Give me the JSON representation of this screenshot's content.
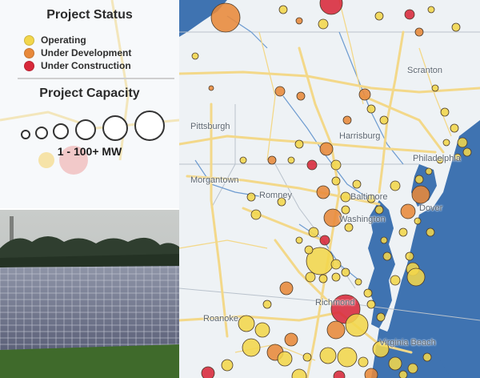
{
  "legend": {
    "status_title": "Project Status",
    "statuses": [
      {
        "label": "Operating",
        "color": "#f2d64b"
      },
      {
        "label": "Under Development",
        "color": "#e8893a"
      },
      {
        "label": "Under Construction",
        "color": "#d8283a"
      }
    ],
    "capacity_title": "Project Capacity",
    "capacity_range": "1 - 100+ MW"
  },
  "map": {
    "land_color": "#eef2f5",
    "water_color": "#3f73b1",
    "road_color": "#f3d889",
    "cities": [
      {
        "name": "Pittsburgh"
      },
      {
        "name": "Harrisburg"
      },
      {
        "name": "Philadelphia"
      },
      {
        "name": "Scranton"
      },
      {
        "name": "Morgantown"
      },
      {
        "name": "Romney"
      },
      {
        "name": "Baltimore"
      },
      {
        "name": "Washington"
      },
      {
        "name": "Dover"
      },
      {
        "name": "Richmond"
      },
      {
        "name": "Roanoke"
      },
      {
        "name": "Virginia Beach"
      }
    ]
  },
  "photo": {
    "icon": "solar-farm-photo"
  }
}
